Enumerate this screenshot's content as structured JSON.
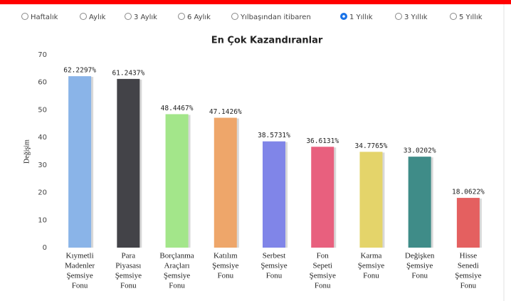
{
  "filters": {
    "options": [
      "Haftalık",
      "Aylık",
      "3 Aylık",
      "6 Aylık",
      "Yılbaşından itibaren",
      "1 Yıllık",
      "3 Yıllık",
      "5 Yıllık"
    ],
    "selected": 5
  },
  "chart_data": {
    "type": "bar",
    "title": "En Çok Kazandıranlar",
    "y_label": "Değişim",
    "categories": [
      [
        "Kıymetli",
        "Madenler",
        "Şemsiye",
        "Fonu"
      ],
      [
        "Para",
        "Piyasası",
        "Şemsiye",
        "Fonu"
      ],
      [
        "Borçlanma",
        "Araçları",
        "Şemsiye",
        "Fonu"
      ],
      [
        "Katılım",
        "Şemsiye",
        "Fonu"
      ],
      [
        "Serbest",
        "Şemsiye",
        "Fonu"
      ],
      [
        "Fon",
        "Sepeti",
        "Şemsiye",
        "Fonu"
      ],
      [
        "Karma",
        "Şemsiye",
        "Fonu"
      ],
      [
        "Değişken",
        "Şemsiye",
        "Fonu"
      ],
      [
        "Hisse",
        "Senedi",
        "Şemsiye",
        "Fonu"
      ]
    ],
    "values": [
      62.2297,
      61.2437,
      48.4467,
      47.1426,
      38.5731,
      36.6131,
      34.7765,
      33.0202,
      18.0622
    ],
    "value_labels": [
      "62.2297%",
      "61.2437%",
      "48.4467%",
      "47.1426%",
      "38.5731%",
      "36.6131%",
      "34.7765%",
      "33.0202%",
      "18.0622%"
    ],
    "colors": [
      "#8ab4e8",
      "#434348",
      "#a3e68a",
      "#eea66a",
      "#8085e8",
      "#e8607e",
      "#e4d46a",
      "#3f8c88",
      "#e46060"
    ],
    "ylim": [
      0,
      70
    ],
    "yticks": [
      0,
      10,
      20,
      30,
      40,
      50,
      60,
      70
    ],
    "grid": false
  }
}
